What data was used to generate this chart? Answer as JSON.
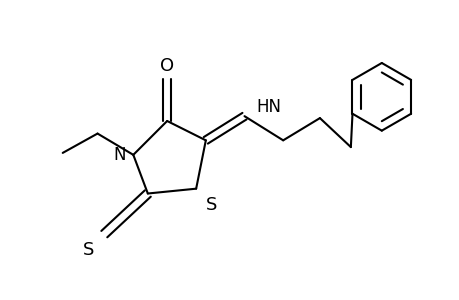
{
  "background": "#ffffff",
  "line_color": "#000000",
  "line_width": 1.5,
  "font_size": 12,
  "fig_width": 4.6,
  "fig_height": 3.0,
  "dpi": 100,
  "xlim": [
    0.5,
    5.2
  ],
  "ylim": [
    0.3,
    3.2
  ]
}
